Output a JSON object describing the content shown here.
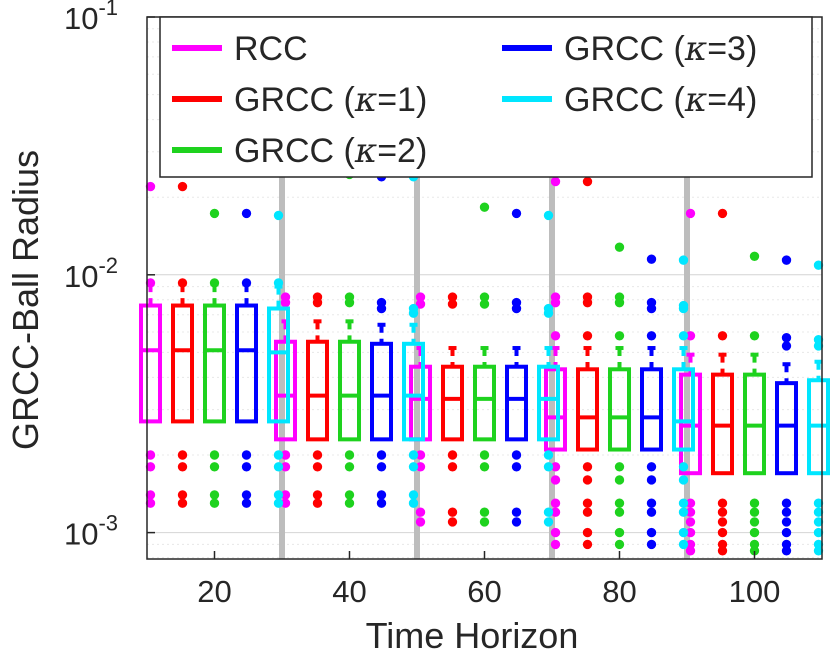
{
  "chart_data": {
    "type": "boxplot",
    "xlabel": "Time Horizon",
    "ylabel": "GRCC-Ball Radius",
    "yscale": "log",
    "ylim": [
      0.00079,
      0.1
    ],
    "grid": "horizontal-minor",
    "legend_position": "top",
    "categories": [
      "20",
      "40",
      "60",
      "80",
      "100"
    ],
    "y_ticks": [
      {
        "value": 0.1,
        "base": "10",
        "exp": "-1"
      },
      {
        "value": 0.01,
        "base": "10",
        "exp": "-2"
      },
      {
        "value": 0.001,
        "base": "10",
        "exp": "-3"
      }
    ],
    "series": [
      {
        "name": "RCC",
        "kappa": "",
        "color": "#ff00ff",
        "boxes": [
          {
            "q1": 0.0027,
            "median": 0.0051,
            "q3": 0.0076,
            "whisker_high": 0.0092,
            "outliers": [
              0.022,
              0.0093,
              0.002,
              0.0018,
              0.0014,
              0.0013
            ]
          },
          {
            "q1": 0.0023,
            "median": 0.0034,
            "q3": 0.0055,
            "whisker_high": 0.0066,
            "outliers": [
              0.0082,
              0.0078,
              0.002,
              0.0018,
              0.0014,
              0.0013
            ]
          },
          {
            "q1": 0.0023,
            "median": 0.0033,
            "q3": 0.0044,
            "whisker_high": 0.0052,
            "outliers": [
              0.0082,
              0.0077,
              0.002,
              0.0018,
              0.0012,
              0.0011
            ]
          },
          {
            "q1": 0.0021,
            "median": 0.0028,
            "q3": 0.0043,
            "whisker_high": 0.0052,
            "outliers": [
              0.023,
              0.0082,
              0.0078,
              0.0058,
              0.0018,
              0.0016,
              0.0013,
              0.0012,
              0.001,
              0.0009
            ]
          },
          {
            "q1": 0.0017,
            "median": 0.0026,
            "q3": 0.0041,
            "whisker_high": 0.0049,
            "outliers": [
              0.0173,
              0.0058,
              0.0013,
              0.0012,
              0.0011,
              0.001,
              0.0009,
              0.00085
            ]
          }
        ]
      },
      {
        "name": "GRCC",
        "kappa": "1",
        "color": "#ff0000",
        "boxes": [
          {
            "q1": 0.0027,
            "median": 0.0051,
            "q3": 0.0076,
            "whisker_high": 0.0092,
            "outliers": [
              0.022,
              0.0093,
              0.002,
              0.0018,
              0.0014,
              0.0013
            ]
          },
          {
            "q1": 0.0023,
            "median": 0.0034,
            "q3": 0.0055,
            "whisker_high": 0.0066,
            "outliers": [
              0.0082,
              0.0078,
              0.002,
              0.0018,
              0.0014,
              0.0013
            ]
          },
          {
            "q1": 0.0023,
            "median": 0.0033,
            "q3": 0.0044,
            "whisker_high": 0.0052,
            "outliers": [
              0.0082,
              0.0077,
              0.002,
              0.0018,
              0.0012,
              0.0011
            ]
          },
          {
            "q1": 0.0021,
            "median": 0.0028,
            "q3": 0.0043,
            "whisker_high": 0.0052,
            "outliers": [
              0.023,
              0.0082,
              0.0078,
              0.0058,
              0.0018,
              0.0016,
              0.0013,
              0.0012,
              0.001,
              0.0009
            ]
          },
          {
            "q1": 0.0017,
            "median": 0.0026,
            "q3": 0.0041,
            "whisker_high": 0.0049,
            "outliers": [
              0.0173,
              0.0058,
              0.0013,
              0.0012,
              0.0011,
              0.001,
              0.0009,
              0.00085
            ]
          }
        ]
      },
      {
        "name": "GRCC",
        "kappa": "2",
        "color": "#1ed21e",
        "boxes": [
          {
            "q1": 0.0027,
            "median": 0.0051,
            "q3": 0.0076,
            "whisker_high": 0.0092,
            "outliers": [
              0.0173,
              0.0093,
              0.002,
              0.0018,
              0.0014,
              0.0013
            ]
          },
          {
            "q1": 0.0023,
            "median": 0.0034,
            "q3": 0.0055,
            "whisker_high": 0.0066,
            "outliers": [
              0.0245,
              0.0082,
              0.0078,
              0.002,
              0.0018,
              0.0014,
              0.0013
            ]
          },
          {
            "q1": 0.0023,
            "median": 0.0033,
            "q3": 0.0044,
            "whisker_high": 0.0052,
            "outliers": [
              0.0183,
              0.0082,
              0.0077,
              0.002,
              0.0018,
              0.0012,
              0.0011
            ]
          },
          {
            "q1": 0.0021,
            "median": 0.0028,
            "q3": 0.0043,
            "whisker_high": 0.0052,
            "outliers": [
              0.0128,
              0.0082,
              0.0078,
              0.0058,
              0.0018,
              0.0016,
              0.0013,
              0.0012,
              0.001,
              0.0009
            ]
          },
          {
            "q1": 0.0017,
            "median": 0.0026,
            "q3": 0.0041,
            "whisker_high": 0.0049,
            "outliers": [
              0.0118,
              0.0058,
              0.0013,
              0.0012,
              0.0011,
              0.001,
              0.0009,
              0.00085
            ]
          }
        ]
      },
      {
        "name": "GRCC",
        "kappa": "3",
        "color": "#0000ff",
        "boxes": [
          {
            "q1": 0.0027,
            "median": 0.0051,
            "q3": 0.0076,
            "whisker_high": 0.0092,
            "outliers": [
              0.0173,
              0.0093,
              0.002,
              0.0018,
              0.0014,
              0.0013
            ]
          },
          {
            "q1": 0.0023,
            "median": 0.0034,
            "q3": 0.0054,
            "whisker_high": 0.0064,
            "outliers": [
              0.024,
              0.0078,
              0.0074,
              0.002,
              0.0018,
              0.0014,
              0.0013
            ]
          },
          {
            "q1": 0.0023,
            "median": 0.0033,
            "q3": 0.0044,
            "whisker_high": 0.0052,
            "outliers": [
              0.0173,
              0.0078,
              0.0074,
              0.002,
              0.0018,
              0.0012,
              0.0011
            ]
          },
          {
            "q1": 0.0021,
            "median": 0.0028,
            "q3": 0.0043,
            "whisker_high": 0.0052,
            "outliers": [
              0.0115,
              0.0078,
              0.0074,
              0.0058,
              0.0018,
              0.0016,
              0.0013,
              0.0012,
              0.001,
              0.0009
            ]
          },
          {
            "q1": 0.0017,
            "median": 0.0026,
            "q3": 0.0038,
            "whisker_high": 0.0045,
            "outliers": [
              0.0114,
              0.0057,
              0.0053,
              0.0013,
              0.0012,
              0.0011,
              0.001,
              0.0009,
              0.00085
            ]
          }
        ]
      },
      {
        "name": "GRCC",
        "kappa": "4",
        "color": "#00e6ff",
        "boxes": [
          {
            "q1": 0.0027,
            "median": 0.005,
            "q3": 0.0074,
            "whisker_high": 0.009,
            "outliers": [
              0.017,
              0.0093,
              0.002,
              0.0018,
              0.0014,
              0.0013
            ]
          },
          {
            "q1": 0.0023,
            "median": 0.0034,
            "q3": 0.0054,
            "whisker_high": 0.0064,
            "outliers": [
              0.024,
              0.0074,
              0.0071,
              0.002,
              0.0018,
              0.0014,
              0.0013
            ]
          },
          {
            "q1": 0.0023,
            "median": 0.0033,
            "q3": 0.0044,
            "whisker_high": 0.0052,
            "outliers": [
              0.017,
              0.0074,
              0.0071,
              0.002,
              0.0018,
              0.0012,
              0.0011
            ]
          },
          {
            "q1": 0.0021,
            "median": 0.0027,
            "q3": 0.0043,
            "whisker_high": 0.0052,
            "outliers": [
              0.0114,
              0.0076,
              0.0074,
              0.0058,
              0.0018,
              0.0016,
              0.0013,
              0.0012,
              0.001,
              0.0009
            ]
          },
          {
            "q1": 0.0017,
            "median": 0.0026,
            "q3": 0.0039,
            "whisker_high": 0.0046,
            "outliers": [
              0.0109,
              0.0056,
              0.0053,
              0.0013,
              0.0012,
              0.0011,
              0.001,
              0.0009,
              0.00085
            ]
          }
        ]
      }
    ]
  }
}
